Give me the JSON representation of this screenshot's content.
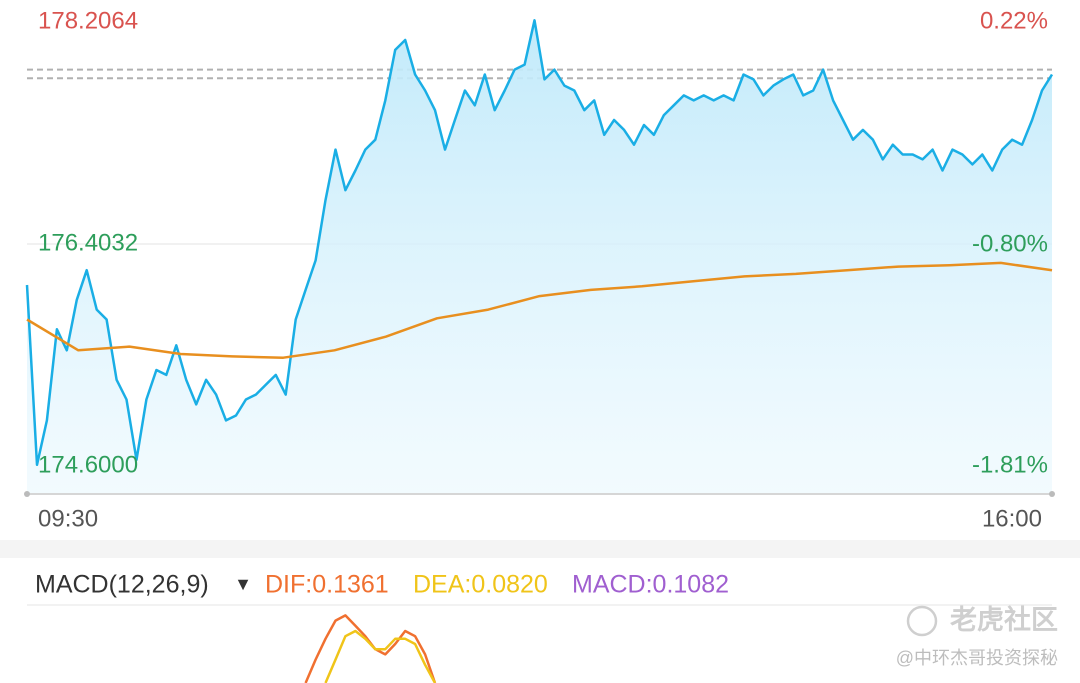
{
  "chart_data": [
    {
      "type": "line",
      "x_labels": [
        "09:30",
        "16:00"
      ],
      "ylim": [
        174.6,
        178.2064
      ],
      "yticks": [
        178.2064,
        176.4032,
        {
          "value": 174.6,
          "label": "174.6000"
        }
      ],
      "y2lim": [
        -1.81,
        0.22
      ],
      "y2ticks": [
        {
          "value": 0.22,
          "label": "0.22%"
        },
        {
          "value": -0.8,
          "label": "-0.80%"
        },
        {
          "value": -1.81,
          "label": "-1.81%"
        }
      ],
      "reference_lines": [
        177.82,
        177.75
      ],
      "up_color": "#d9534f",
      "down_color": "#2e9e5b",
      "grid": true,
      "series": [
        {
          "color": "#1aaee5",
          "fill": true,
          "values": [
            176.07,
            174.61,
            174.97,
            175.71,
            175.54,
            175.95,
            176.19,
            175.87,
            175.79,
            175.3,
            175.14,
            174.65,
            175.14,
            175.38,
            175.34,
            175.58,
            175.3,
            175.1,
            175.3,
            175.18,
            174.97,
            175.01,
            175.14,
            175.18,
            175.26,
            175.34,
            175.18,
            175.79,
            176.03,
            176.27,
            176.76,
            177.17,
            176.84,
            177.0,
            177.17,
            177.25,
            177.57,
            177.98,
            178.06,
            177.78,
            177.65,
            177.49,
            177.17,
            177.41,
            177.65,
            177.53,
            177.78,
            177.49,
            177.65,
            177.82,
            177.86,
            178.22,
            177.74,
            177.82,
            177.69,
            177.65,
            177.49,
            177.57,
            177.29,
            177.41,
            177.33,
            177.21,
            177.37,
            177.29,
            177.45,
            177.53,
            177.61,
            177.57,
            177.61,
            177.57,
            177.61,
            177.57,
            177.78,
            177.74,
            177.61,
            177.69,
            177.74,
            177.78,
            177.61,
            177.65,
            177.82,
            177.57,
            177.41,
            177.25,
            177.33,
            177.25,
            177.09,
            177.21,
            177.13,
            177.13,
            177.09,
            177.17,
            177.0,
            177.17,
            177.13,
            177.05,
            177.13,
            177.0,
            177.17,
            177.25,
            177.21,
            177.41,
            177.65,
            177.78
          ]
        },
        {
          "color": "#e88f1f",
          "fill": false,
          "values": [
            175.79,
            175.54,
            175.57,
            175.51,
            175.49,
            175.48,
            175.54,
            175.65,
            175.8,
            175.87,
            175.98,
            176.03,
            176.06,
            176.1,
            176.14,
            176.16,
            176.19,
            176.22,
            176.23,
            176.25,
            176.19
          ]
        }
      ]
    },
    {
      "type": "line",
      "title": "MACD(12,26,9)",
      "xlim": [
        0,
        103
      ],
      "ylim": [
        -0.05,
        0.25
      ],
      "series": [
        {
          "name": "DIF:0.1361",
          "color": "#f07030",
          "x": [
            28,
            29,
            30,
            31,
            32,
            33,
            34,
            35,
            36,
            37,
            38,
            39,
            40,
            41
          ],
          "values": [
            -0.05,
            0.04,
            0.12,
            0.19,
            0.21,
            0.17,
            0.13,
            0.08,
            0.06,
            0.1,
            0.15,
            0.13,
            0.06,
            -0.05
          ]
        },
        {
          "name": "DEA:0.0820",
          "color": "#f0c419",
          "x": [
            30,
            31,
            32,
            33,
            34,
            35,
            36,
            37,
            38,
            39,
            40,
            41
          ],
          "values": [
            -0.05,
            0.04,
            0.13,
            0.15,
            0.12,
            0.08,
            0.08,
            0.12,
            0.12,
            0.1,
            0.02,
            -0.05
          ]
        },
        {
          "name": "MACD:0.1082",
          "color": "#a05fd0",
          "x": [],
          "values": []
        }
      ]
    }
  ],
  "watermark": {
    "brand": "老虎社区",
    "author": "@中环杰哥投资探秘"
  }
}
